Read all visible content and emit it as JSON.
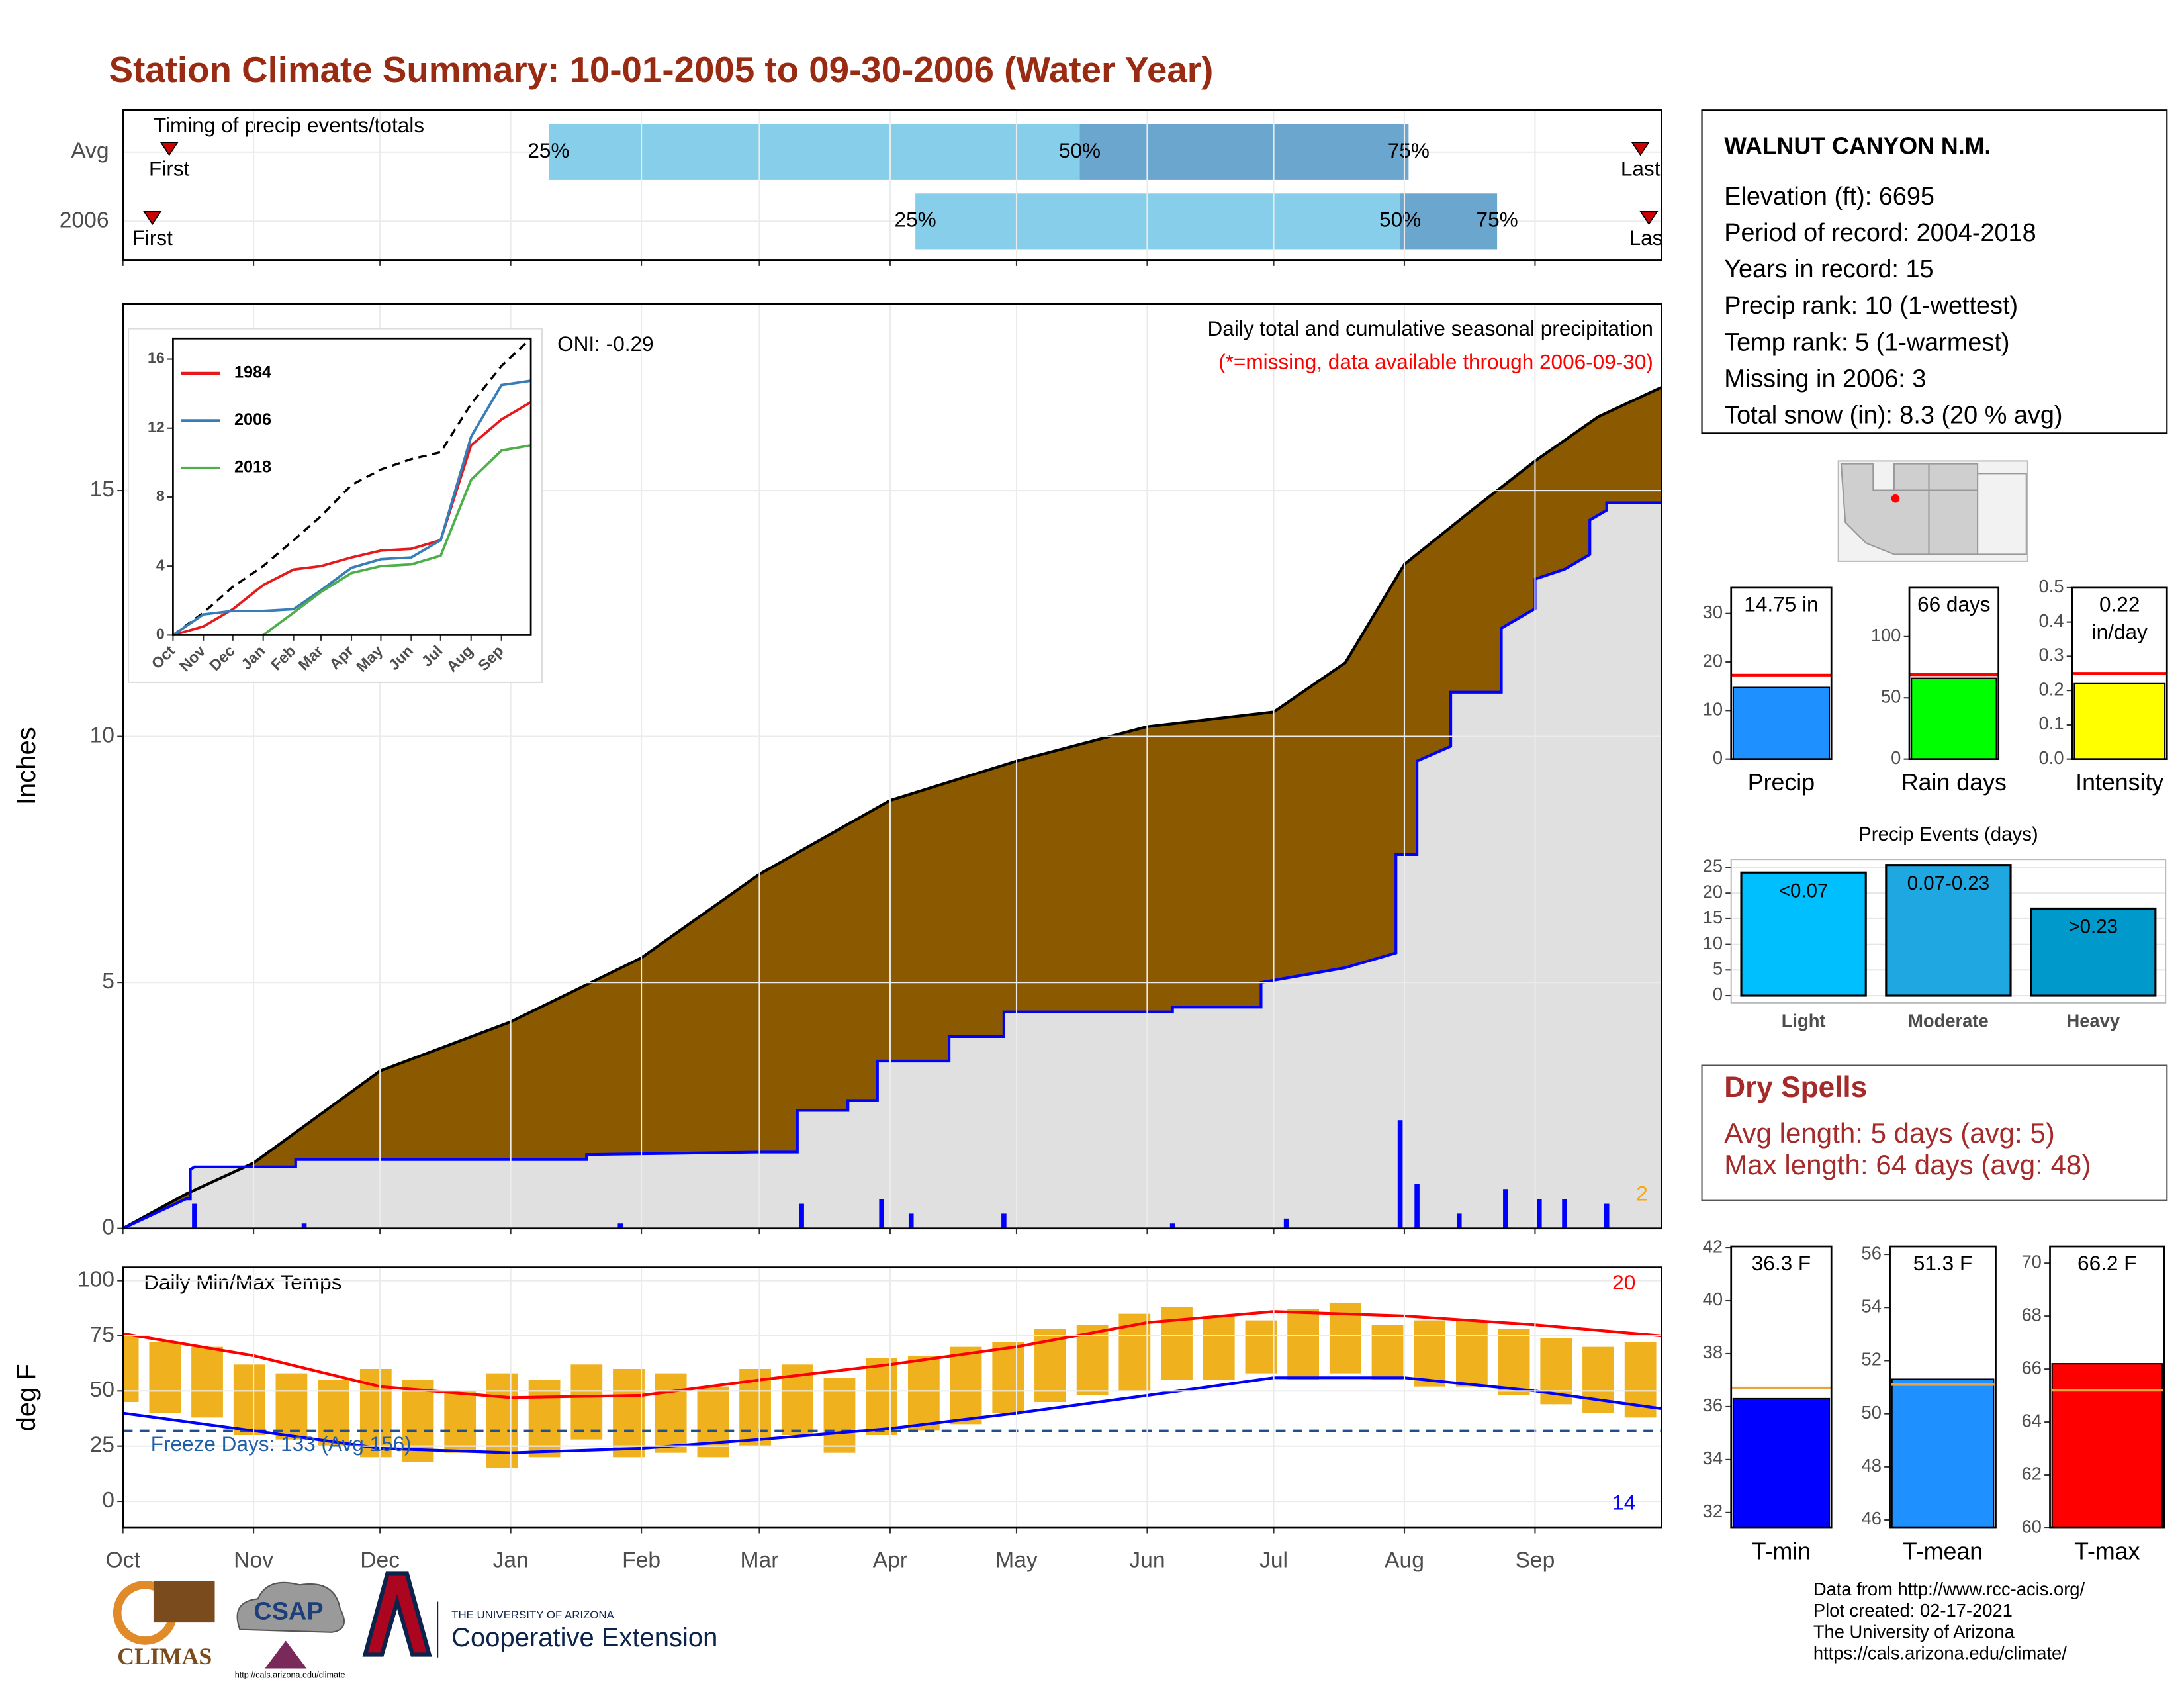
{
  "title": "Station Climate Summary: 10-01-2005 to 09-30-2006 (Water Year)",
  "station": {
    "name": "WALNUT CANYON N.M.",
    "lines": [
      "Elevation (ft): 6695",
      "Period of record: 2004-2018",
      "Years in record: 15",
      "Precip rank: 10 (1-wettest)",
      "Temp rank: 5 (1-warmest)",
      "Missing in 2006: 3",
      "Total snow (in): 8.3 (20 % avg)"
    ]
  },
  "dry_spells": {
    "title": "Dry Spells",
    "lines": [
      "Avg length: 5 days (avg: 5)",
      "Max length: 64 days (avg: 48)"
    ]
  },
  "footer": [
    "Data from http://www.rcc-acis.org/",
    "Plot created: 02-17-2021",
    "The University of Arizona",
    "https://cals.arizona.edu/climate/"
  ],
  "logos": {
    "climas": "CLIMAS",
    "csap": "CSAP",
    "csap_url": "http://cals.arizona.edu/climate",
    "university": "THE UNIVERSITY OF ARIZONA",
    "extension": "Cooperative Extension"
  },
  "chart_data": [
    {
      "type": "timing",
      "title": "Timing of precip events/totals",
      "categories": [
        "Avg",
        "2006"
      ],
      "markers": [
        {
          "label": "First",
          "values": [
            11,
            7
          ]
        },
        {
          "label": "25%",
          "values": [
            101,
            188
          ]
        },
        {
          "label": "50%",
          "values": [
            227,
            303
          ]
        },
        {
          "label": "75%",
          "values": [
            305,
            326
          ]
        },
        {
          "label": "Last",
          "values": [
            360,
            362
          ]
        }
      ],
      "colors": [
        "#87ceeb",
        "#6aa6cd"
      ],
      "marker_color": "#cc0000",
      "xlim": [
        0,
        365
      ],
      "xticks": [
        0,
        31,
        61,
        92,
        123,
        151,
        182,
        212,
        243,
        273,
        304,
        335
      ],
      "grid": true
    },
    {
      "type": "cumulative",
      "ylabel": "Inches",
      "annotations": [
        {
          "text": "Daily total and cumulative seasonal precipitation",
          "color": "#000000"
        },
        {
          "text": "(*=missing, data available through 2006-09-30)",
          "color": "#ff0000"
        },
        {
          "text": "ONI: -0.29",
          "color": "#000000"
        },
        {
          "text": "2",
          "color": "#ffa500"
        }
      ],
      "series": [
        {
          "style": "area",
          "color": "#8b5a00",
          "line_color": "#000000",
          "x": [
            0,
            15,
            31,
            61,
            92,
            123,
            151,
            182,
            212,
            243,
            273,
            290,
            304,
            320,
            335,
            350,
            365
          ],
          "values": [
            0,
            0.7,
            1.33,
            3.2,
            4.2,
            5.5,
            7.2,
            8.7,
            9.5,
            10.2,
            10.5,
            11.5,
            13.5,
            14.6,
            15.6,
            16.5,
            17.1
          ]
        },
        {
          "style": "area",
          "color": "#e0e0e0",
          "line_color": "#0000ff",
          "x": [
            0,
            15,
            16,
            16,
            17,
            41,
            41,
            110,
            110,
            151,
            160,
            160,
            172,
            172,
            179,
            179,
            196,
            196,
            209,
            209,
            249,
            249,
            270,
            270,
            290,
            302,
            302,
            307,
            307,
            315,
            315,
            327,
            327,
            335,
            335,
            342,
            348,
            348,
            352,
            352,
            365
          ],
          "values": [
            0,
            0.6,
            0.6,
            1.2,
            1.25,
            1.25,
            1.4,
            1.4,
            1.5,
            1.55,
            1.55,
            2.4,
            2.4,
            2.6,
            2.6,
            3.4,
            3.4,
            3.9,
            3.9,
            4.4,
            4.4,
            4.5,
            4.5,
            5.0,
            5.3,
            5.6,
            7.6,
            7.6,
            9.5,
            9.8,
            10.9,
            10.9,
            12.2,
            12.6,
            13.2,
            13.4,
            13.7,
            14.4,
            14.6,
            14.75,
            14.75
          ]
        },
        {
          "style": "bar",
          "color": "#0000ff",
          "x": [
            17,
            43,
            118,
            161,
            180,
            187,
            209,
            249,
            276,
            303,
            307,
            317,
            328,
            336,
            342,
            352
          ],
          "values": [
            0.5,
            0.1,
            0.1,
            0.5,
            0.6,
            0.3,
            0.3,
            0.1,
            0.2,
            2.2,
            0.9,
            0.3,
            0.8,
            0.6,
            0.6,
            0.5
          ]
        }
      ],
      "xlim": [
        0,
        365
      ],
      "xticks": [
        0,
        31,
        61,
        92,
        123,
        151,
        182,
        212,
        243,
        273,
        304,
        335
      ],
      "ylim": [
        0,
        18.8
      ],
      "yticks": [
        0,
        5,
        10,
        15
      ],
      "grid": true
    },
    {
      "type": "line",
      "series": [
        {
          "values": [
            0,
            1.3,
            2.8,
            4,
            5.5,
            6.9,
            8.7,
            9.6,
            10.2,
            10.6,
            13.4,
            15.6,
            17.2
          ],
          "color": "#000000",
          "dash": true
        },
        {
          "name": "1984",
          "color": "#e41a1c",
          "values": [
            0,
            0.5,
            1.5,
            2.9,
            3.8,
            4,
            4.5,
            4.9,
            5,
            5.5,
            11,
            12.5,
            13.5
          ]
        },
        {
          "name": "2006",
          "color": "#377eb8",
          "values": [
            0,
            1.2,
            1.4,
            1.4,
            1.5,
            2.6,
            3.9,
            4.4,
            4.5,
            5.5,
            11.5,
            14.5,
            14.75
          ]
        },
        {
          "name": "2018",
          "color": "#4daf4a",
          "values": [
            null,
            null,
            null,
            0,
            1.3,
            2.5,
            3.6,
            4,
            4.1,
            4.6,
            9,
            10.7,
            11
          ]
        }
      ],
      "x": [
        0,
        31,
        61,
        92,
        123,
        151,
        182,
        212,
        243,
        273,
        304,
        335,
        365
      ],
      "xlim": [
        0,
        365
      ],
      "xticks": [
        {
          "value": 0,
          "label": "Oct"
        },
        {
          "value": 31,
          "label": "Nov"
        },
        {
          "value": 61,
          "label": "Dec"
        },
        {
          "value": 92,
          "label": "Jan"
        },
        {
          "value": 123,
          "label": "Feb"
        },
        {
          "value": 151,
          "label": "Mar"
        },
        {
          "value": 182,
          "label": "Apr"
        },
        {
          "value": 212,
          "label": "May"
        },
        {
          "value": 243,
          "label": "Jun"
        },
        {
          "value": 273,
          "label": "Jul"
        },
        {
          "value": 304,
          "label": "Aug"
        },
        {
          "value": 335,
          "label": "Sep"
        }
      ],
      "ylim": [
        0,
        17.2
      ],
      "yticks": [
        0,
        4,
        8,
        12,
        16
      ]
    },
    {
      "type": "temps",
      "title": "Daily Min/Max Temps",
      "ylabel": "deg F",
      "ranges": {
        "color": "#efb21e",
        "x": [
          0,
          10,
          20,
          30,
          40,
          50,
          60,
          70,
          80,
          90,
          100,
          110,
          120,
          130,
          140,
          150,
          160,
          170,
          180,
          190,
          200,
          210,
          220,
          230,
          240,
          250,
          260,
          270,
          280,
          290,
          300,
          310,
          320,
          330,
          340,
          350,
          360
        ],
        "high": [
          75,
          72,
          70,
          62,
          58,
          55,
          60,
          55,
          50,
          58,
          55,
          62,
          60,
          58,
          52,
          60,
          62,
          56,
          65,
          66,
          70,
          72,
          78,
          80,
          85,
          88,
          84,
          82,
          87,
          90,
          80,
          82,
          82,
          78,
          74,
          70,
          72
        ],
        "low": [
          45,
          40,
          38,
          30,
          28,
          25,
          20,
          18,
          22,
          15,
          20,
          28,
          20,
          22,
          20,
          25,
          30,
          22,
          30,
          32,
          35,
          40,
          45,
          48,
          50,
          55,
          55,
          58,
          55,
          58,
          55,
          52,
          52,
          48,
          44,
          40,
          38
        ]
      },
      "series": [
        {
          "color": "#ff0000",
          "x": [
            0,
            31,
            61,
            92,
            123,
            151,
            182,
            212,
            243,
            273,
            304,
            335,
            365
          ],
          "values": [
            76,
            66,
            52,
            47,
            48,
            55,
            62,
            70,
            81,
            86,
            84,
            80,
            75
          ]
        },
        {
          "color": "#0000ff",
          "x": [
            0,
            31,
            61,
            92,
            123,
            151,
            182,
            212,
            243,
            273,
            304,
            335,
            365
          ],
          "values": [
            40,
            32,
            24,
            22,
            24,
            28,
            33,
            40,
            48,
            56,
            56,
            50,
            42
          ]
        }
      ],
      "freeze_line": 32,
      "freeze_color": "#1f4e8c",
      "annotations": [
        {
          "text": "Freeze Days: 133 (Avg 156)",
          "color": "#1f5fa8"
        },
        {
          "text": "20",
          "color": "#ff0000"
        },
        {
          "text": "14",
          "color": "#0000ff"
        }
      ],
      "xlim": [
        0,
        365
      ],
      "xticks": [
        {
          "value": 0,
          "label": "Oct"
        },
        {
          "value": 31,
          "label": "Nov"
        },
        {
          "value": 61,
          "label": "Dec"
        },
        {
          "value": 92,
          "label": "Jan"
        },
        {
          "value": 123,
          "label": "Feb"
        },
        {
          "value": 151,
          "label": "Mar"
        },
        {
          "value": 182,
          "label": "Apr"
        },
        {
          "value": 212,
          "label": "May"
        },
        {
          "value": 243,
          "label": "Jun"
        },
        {
          "value": 273,
          "label": "Jul"
        },
        {
          "value": 304,
          "label": "Aug"
        },
        {
          "value": 335,
          "label": "Sep"
        }
      ],
      "ylim": [
        -12,
        106
      ],
      "yticks": [
        0,
        25,
        50,
        75,
        100
      ],
      "grid": true
    },
    {
      "type": "gauge",
      "categories": [
        "Precip"
      ],
      "values": [
        14.75
      ],
      "value_labels": [
        "14.75 in"
      ],
      "average": 17.3,
      "color": "#1e90ff",
      "average_color": "#ff0000",
      "ylim": [
        0,
        35.3
      ],
      "yticks": [
        0,
        10,
        20,
        30
      ]
    },
    {
      "type": "gauge",
      "categories": [
        "Rain days"
      ],
      "values": [
        66
      ],
      "value_labels": [
        "66 days"
      ],
      "average": 69,
      "color": "#00ff00",
      "average_color": "#ff0000",
      "ylim": [
        0,
        140
      ],
      "yticks": [
        0,
        50,
        100
      ]
    },
    {
      "type": "gauge",
      "categories": [
        "Intensity"
      ],
      "values": [
        0.22
      ],
      "value_labels": [
        "0.22 in/day"
      ],
      "average": 0.25,
      "color": "#ffff00",
      "average_color": "#ff0000",
      "ylim": [
        0,
        0.5
      ],
      "yticks": [
        {
          "value": 0,
          "label": "0.0"
        },
        0.1,
        0.2,
        0.3,
        0.4,
        0.5
      ]
    },
    {
      "type": "bar",
      "title": "Precip Events (days)",
      "categories": [
        "Light",
        "Moderate",
        "Heavy"
      ],
      "thresholds": [
        "<0.07",
        "0.07-0.23",
        ">0.23"
      ],
      "values": [
        24,
        25.5,
        17
      ],
      "colors": [
        "#00bfff",
        "#1ea7e1",
        "#0099cc"
      ],
      "ylim": [
        -1.4,
        26.6
      ],
      "yticks": [
        0,
        5,
        10,
        15,
        20,
        25
      ],
      "grid": true
    },
    {
      "type": "gauge",
      "categories": [
        "T-min"
      ],
      "values": [
        36.3
      ],
      "value_labels": [
        "36.3 F"
      ],
      "average": 36.7,
      "color": "#0000ff",
      "average_color": "#e8a33d",
      "ylim": [
        31.42,
        42.05
      ],
      "yticks": [
        32,
        34,
        36,
        38,
        40,
        42
      ]
    },
    {
      "type": "gauge",
      "categories": [
        "T-mean"
      ],
      "values": [
        51.3
      ],
      "value_labels": [
        "51.3 F"
      ],
      "average": 51.1,
      "color": "#1e90ff",
      "average_color": "#e8a33d",
      "ylim": [
        45.7,
        56.3
      ],
      "yticks": [
        46,
        48,
        50,
        52,
        54,
        56
      ]
    },
    {
      "type": "gauge",
      "categories": [
        "T-max"
      ],
      "values": [
        66.2
      ],
      "value_labels": [
        "66.2 F"
      ],
      "average": 65.2,
      "color": "#ff0000",
      "average_color": "#e8a33d",
      "ylim": [
        60,
        70.63
      ],
      "yticks": [
        60,
        62,
        64,
        66,
        68,
        70
      ]
    }
  ]
}
